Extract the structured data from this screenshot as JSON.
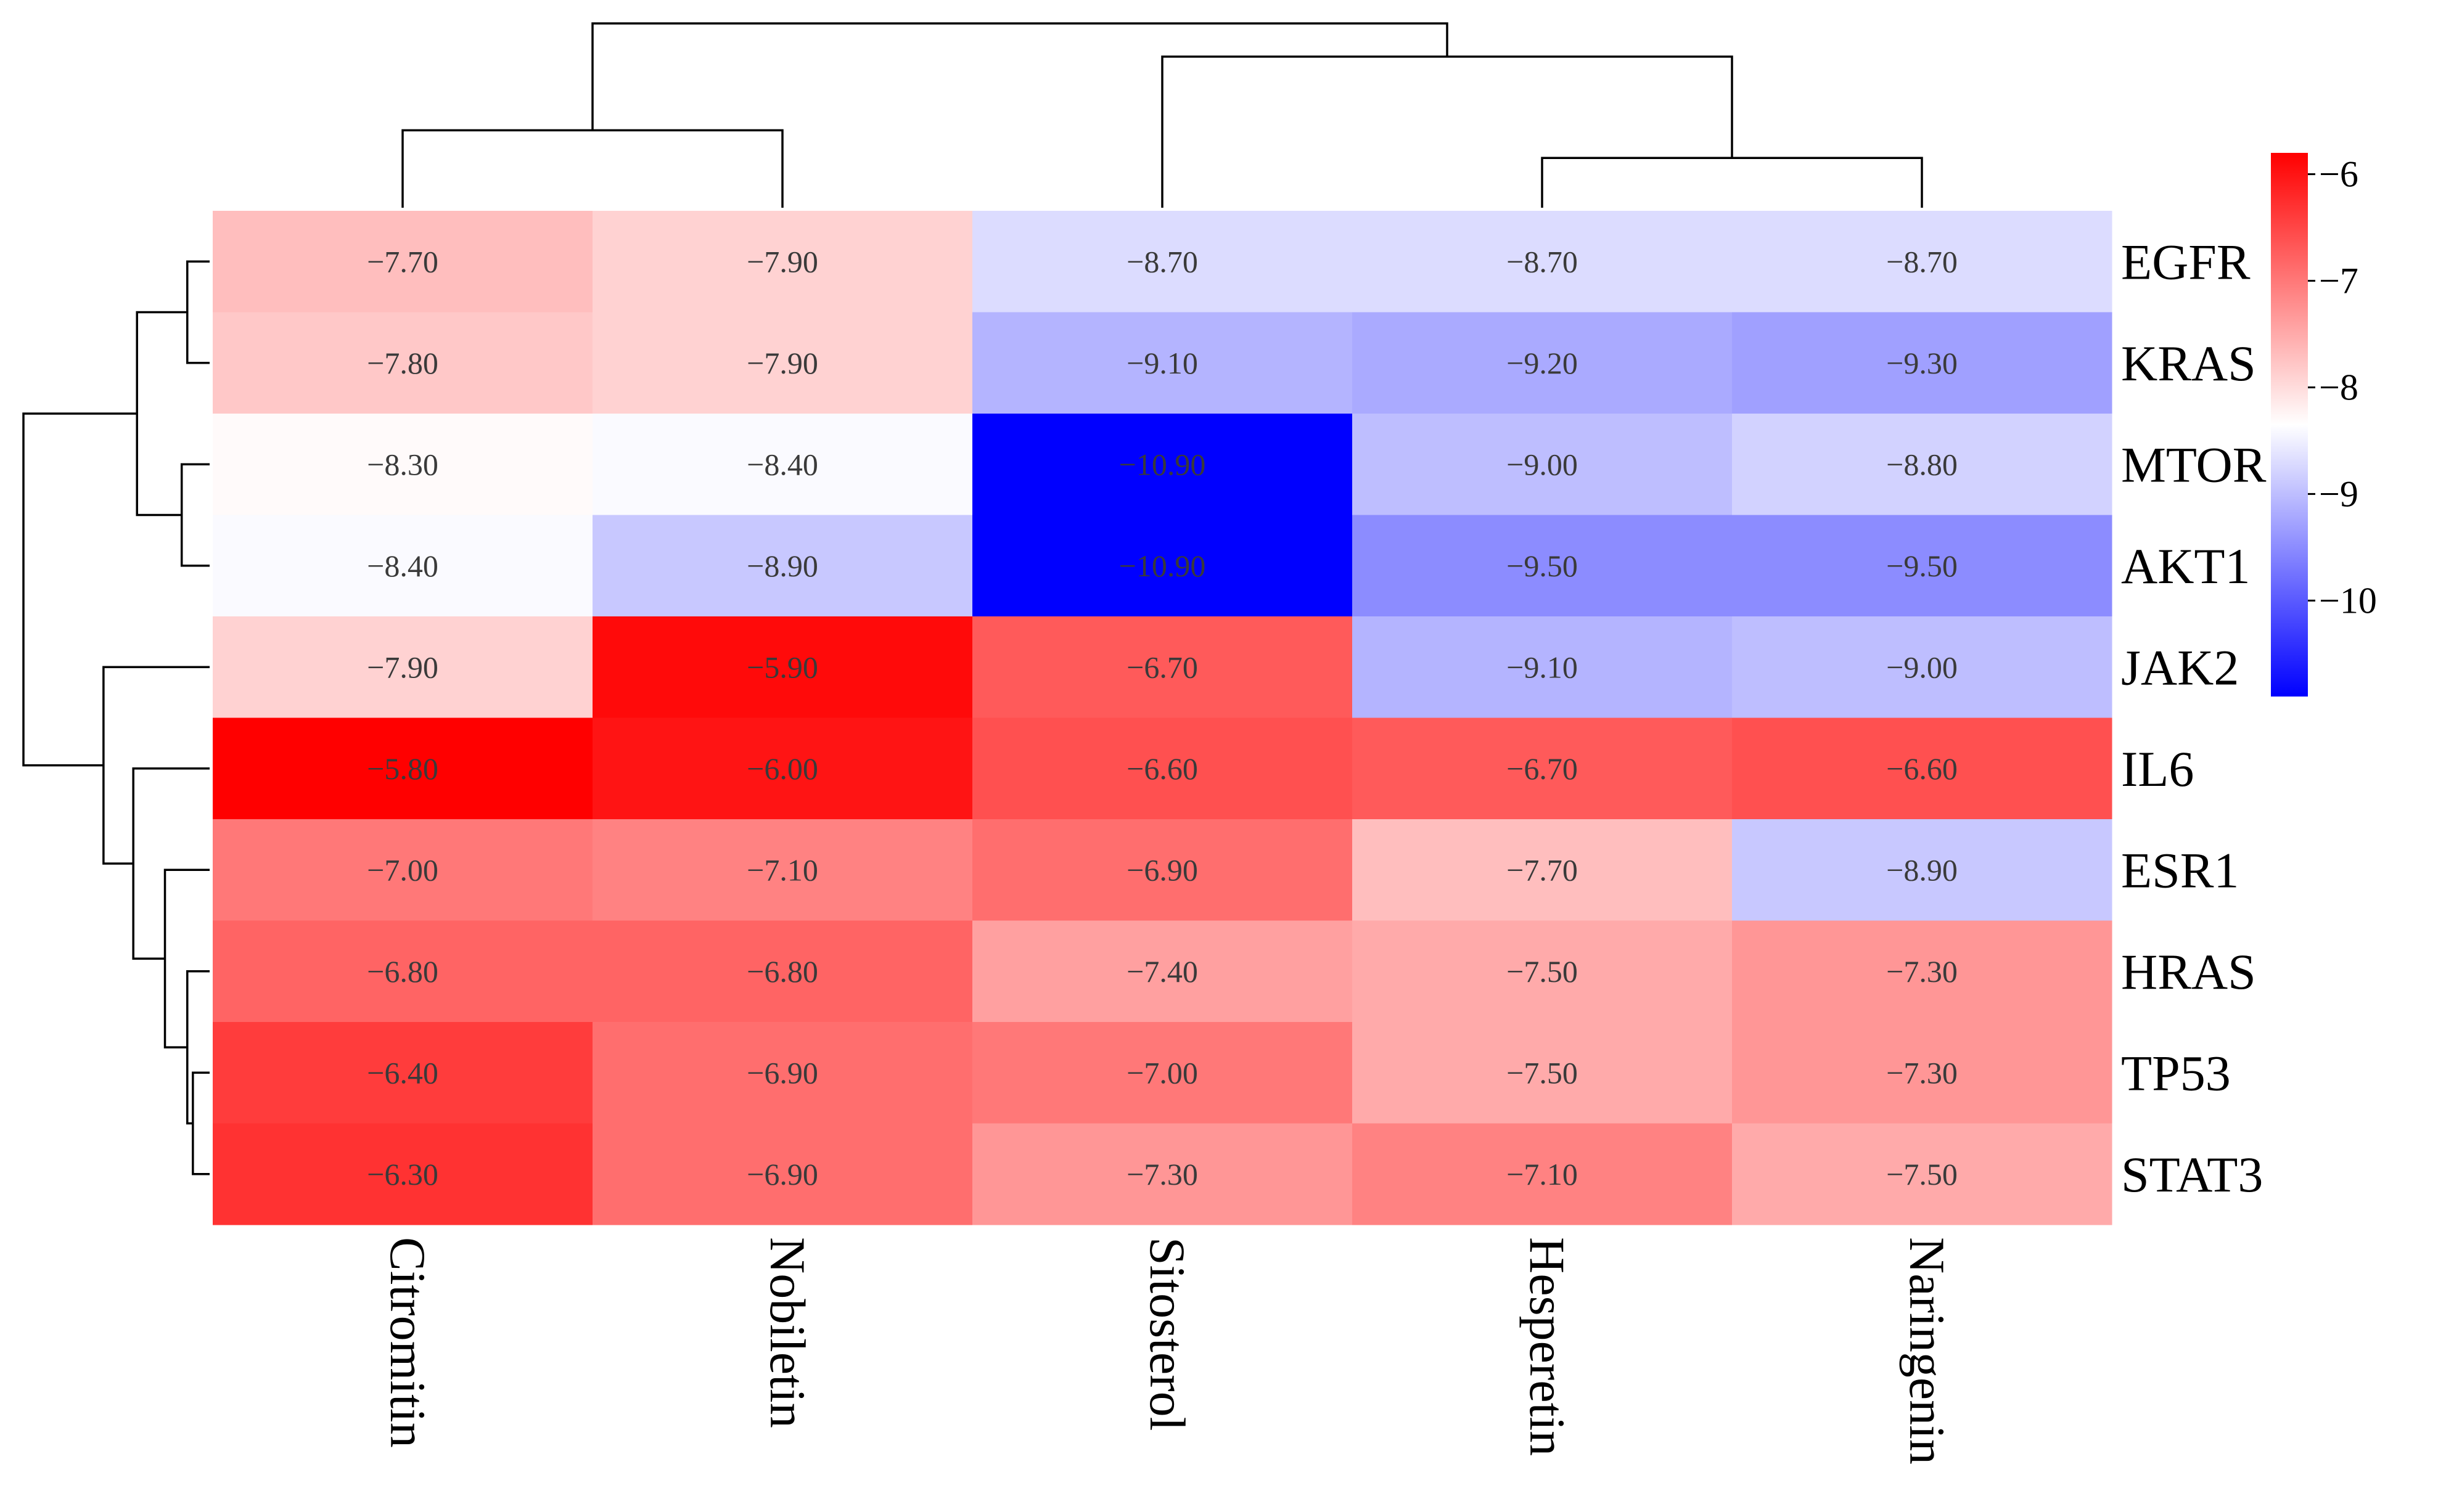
{
  "chart_data": {
    "type": "heatmap",
    "title": "",
    "rows": [
      "EGFR",
      "KRAS",
      "MTOR",
      "AKT1",
      "JAK2",
      "IL6",
      "ESR1",
      "HRAS",
      "TP53",
      "STAT3"
    ],
    "columns": [
      "Citromitin",
      "Nobiletin",
      "Sitosterol",
      "Hesperetin",
      "Naringenin"
    ],
    "values": [
      [
        -7.7,
        -7.9,
        -8.7,
        -8.7,
        -8.7
      ],
      [
        -7.8,
        -7.9,
        -9.1,
        -9.2,
        -9.3
      ],
      [
        -8.3,
        -8.4,
        -10.9,
        -9.0,
        -8.8
      ],
      [
        -8.4,
        -8.9,
        -10.9,
        -9.5,
        -9.5
      ],
      [
        -7.9,
        -5.9,
        -6.7,
        -9.1,
        -9.0
      ],
      [
        -5.8,
        -6.0,
        -6.6,
        -6.7,
        -6.6
      ],
      [
        -7.0,
        -7.1,
        -6.9,
        -7.7,
        -8.9
      ],
      [
        -6.8,
        -6.8,
        -7.4,
        -7.5,
        -7.3
      ],
      [
        -6.4,
        -6.9,
        -7.0,
        -7.5,
        -7.3
      ],
      [
        -6.3,
        -6.9,
        -7.3,
        -7.1,
        -7.5
      ]
    ],
    "cell_labels": [
      [
        "−7.70",
        "−7.90",
        "−8.70",
        "−8.70",
        "−8.70"
      ],
      [
        "−7.80",
        "−7.90",
        "−9.10",
        "−9.20",
        "−9.30"
      ],
      [
        "−8.30",
        "−8.40",
        "−10.90",
        "−9.00",
        "−8.80"
      ],
      [
        "−8.40",
        "−8.90",
        "−10.90",
        "−9.50",
        "−9.50"
      ],
      [
        "−7.90",
        "−5.90",
        "−6.70",
        "−9.10",
        "−9.00"
      ],
      [
        "−5.80",
        "−6.00",
        "−6.60",
        "−6.70",
        "−6.60"
      ],
      [
        "−7.00",
        "−7.10",
        "−6.90",
        "−7.70",
        "−8.90"
      ],
      [
        "−6.80",
        "−6.80",
        "−7.40",
        "−7.50",
        "−7.30"
      ],
      [
        "−6.40",
        "−6.90",
        "−7.00",
        "−7.50",
        "−7.30"
      ],
      [
        "−6.30",
        "−6.90",
        "−7.30",
        "−7.10",
        "−7.50"
      ]
    ],
    "color_scale": {
      "min": -10.9,
      "mid": -8.35,
      "max": -5.8,
      "low_color": "#0000ff",
      "mid_color": "#ffffff",
      "high_color": "#ff0000"
    },
    "legend": {
      "position": "right",
      "ticks": [
        -6,
        -7,
        -8,
        -9,
        -10
      ],
      "tick_labels": [
        "−6",
        "−7",
        "−8",
        "−9",
        "−10"
      ]
    },
    "column_dendrogram": {
      "leaf_order": [
        "Citromitin",
        "Nobiletin",
        "Sitosterol",
        "Hesperetin",
        "Naringenin"
      ],
      "merges": [
        {
          "a": "Citromitin",
          "b": "Nobiletin",
          "height": 0.42
        },
        {
          "a": "Hesperetin",
          "b": "Naringenin",
          "height": 0.27
        },
        {
          "a": "Sitosterol",
          "b": "Hesperetin+Naringenin",
          "height": 0.82
        },
        {
          "a": "Citromitin+Nobiletin",
          "b": "Sitosterol+Hesperetin+Naringenin",
          "height": 1.0
        }
      ]
    },
    "row_dendrogram": {
      "leaf_order": [
        "EGFR",
        "KRAS",
        "MTOR",
        "AKT1",
        "JAK2",
        "IL6",
        "ESR1",
        "HRAS",
        "TP53",
        "STAT3"
      ],
      "merges": [
        {
          "a": "EGFR",
          "b": "KRAS",
          "height": 0.12
        },
        {
          "a": "MTOR",
          "b": "AKT1",
          "height": 0.15
        },
        {
          "a": "EGFR+KRAS",
          "b": "MTOR+AKT1",
          "height": 0.39
        },
        {
          "a": "TP53",
          "b": "STAT3",
          "height": 0.09
        },
        {
          "a": "HRAS",
          "b": "TP53+STAT3",
          "height": 0.12
        },
        {
          "a": "ESR1",
          "b": "HRAS+TP53+STAT3",
          "height": 0.24
        },
        {
          "a": "IL6",
          "b": "ESR1+HRAS+TP53+STAT3",
          "height": 0.41
        },
        {
          "a": "JAK2",
          "b": "IL6+ESR1+HRAS+TP53+STAT3",
          "height": 0.57
        },
        {
          "a": "EGFR+KRAS+MTOR+AKT1",
          "b": "JAK2+IL6+ESR1+HRAS+TP53+STAT3",
          "height": 1.0
        }
      ]
    }
  }
}
